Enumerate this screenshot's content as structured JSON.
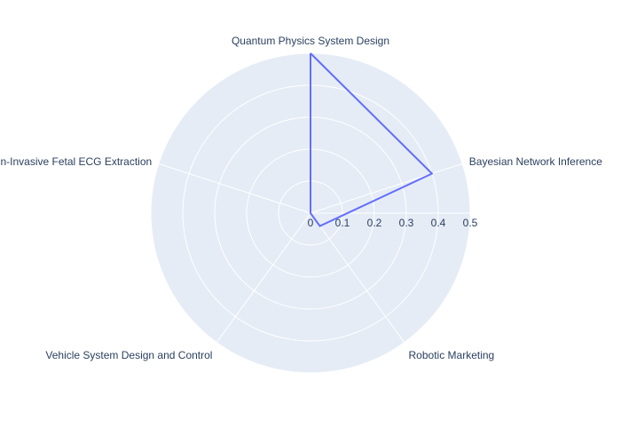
{
  "chart_data": {
    "type": "radar",
    "categories": [
      "Quantum Physics System Design",
      "Bayesian Network Inference",
      "Robotic Marketing",
      "Vehicle System Design and Control",
      "Non-Invasive Fetal ECG Extraction"
    ],
    "series": [
      {
        "values": [
          0.5,
          0.4,
          0.05,
          0,
          0
        ]
      }
    ],
    "radial_range": [
      0,
      0.5
    ],
    "radial_ticks": [
      0,
      0.1,
      0.2,
      0.3,
      0.4,
      0.5
    ],
    "radial_tick_labels": [
      "0",
      "0.1",
      "0.2",
      "0.3",
      "0.4",
      "0.5"
    ],
    "grid": true,
    "fill": "none"
  },
  "colors": {
    "polar_bg": "#e5ecf6",
    "grid": "#ffffff",
    "series_line": "#636efa",
    "text": "#2a3f5f"
  }
}
